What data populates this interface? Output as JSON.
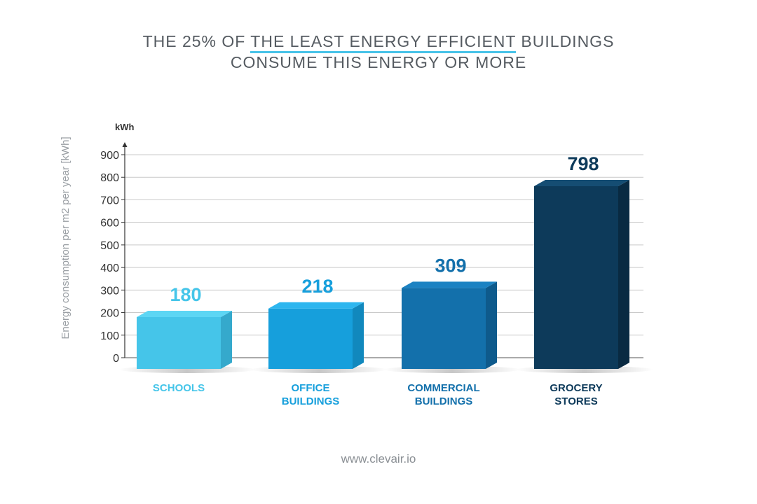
{
  "title": {
    "line1_prefix": "THE 25% OF ",
    "line1_highlight": "THE LEAST ENERGY EFFICIENT",
    "line1_suffix": " BUILDINGS",
    "line2": "CONSUME THIS ENERGY OR MORE"
  },
  "footer": {
    "url": "www.clevair.io"
  },
  "colors": {
    "highlight_underline": "#47c3e8",
    "axis_label": "#9a9fa4",
    "text_dark": "#333333"
  },
  "chart_data": {
    "type": "bar",
    "categories": [
      [
        "SCHOOLS"
      ],
      [
        "OFFICE",
        "BUILDINGS"
      ],
      [
        "COMMERCIAL",
        "BUILDINGS"
      ],
      [
        "GROCERY",
        "STORES"
      ]
    ],
    "values": [
      180,
      218,
      309,
      798
    ],
    "data_labels": [
      "180",
      "218",
      "309",
      "798"
    ],
    "bar_colors": [
      {
        "front": "#45c5e9",
        "top": "#5dd6f4",
        "side": "#35a9cc",
        "label": "#45c5e9"
      },
      {
        "front": "#169fdc",
        "top": "#2db6ef",
        "side": "#1188bd",
        "label": "#169fdc"
      },
      {
        "front": "#1370ab",
        "top": "#1c82c2",
        "side": "#0e5a8c",
        "label": "#1370ab"
      },
      {
        "front": "#0d3a5a",
        "top": "#154d73",
        "side": "#092a42",
        "label": "#0d3a5a"
      }
    ],
    "ylabel": "Energy consumption per m2 per year [kWh]",
    "yunit": "kWh",
    "ylim": [
      0,
      900
    ],
    "yticks": [
      0,
      100,
      200,
      300,
      400,
      500,
      600,
      700,
      800,
      900
    ],
    "grid": true
  }
}
